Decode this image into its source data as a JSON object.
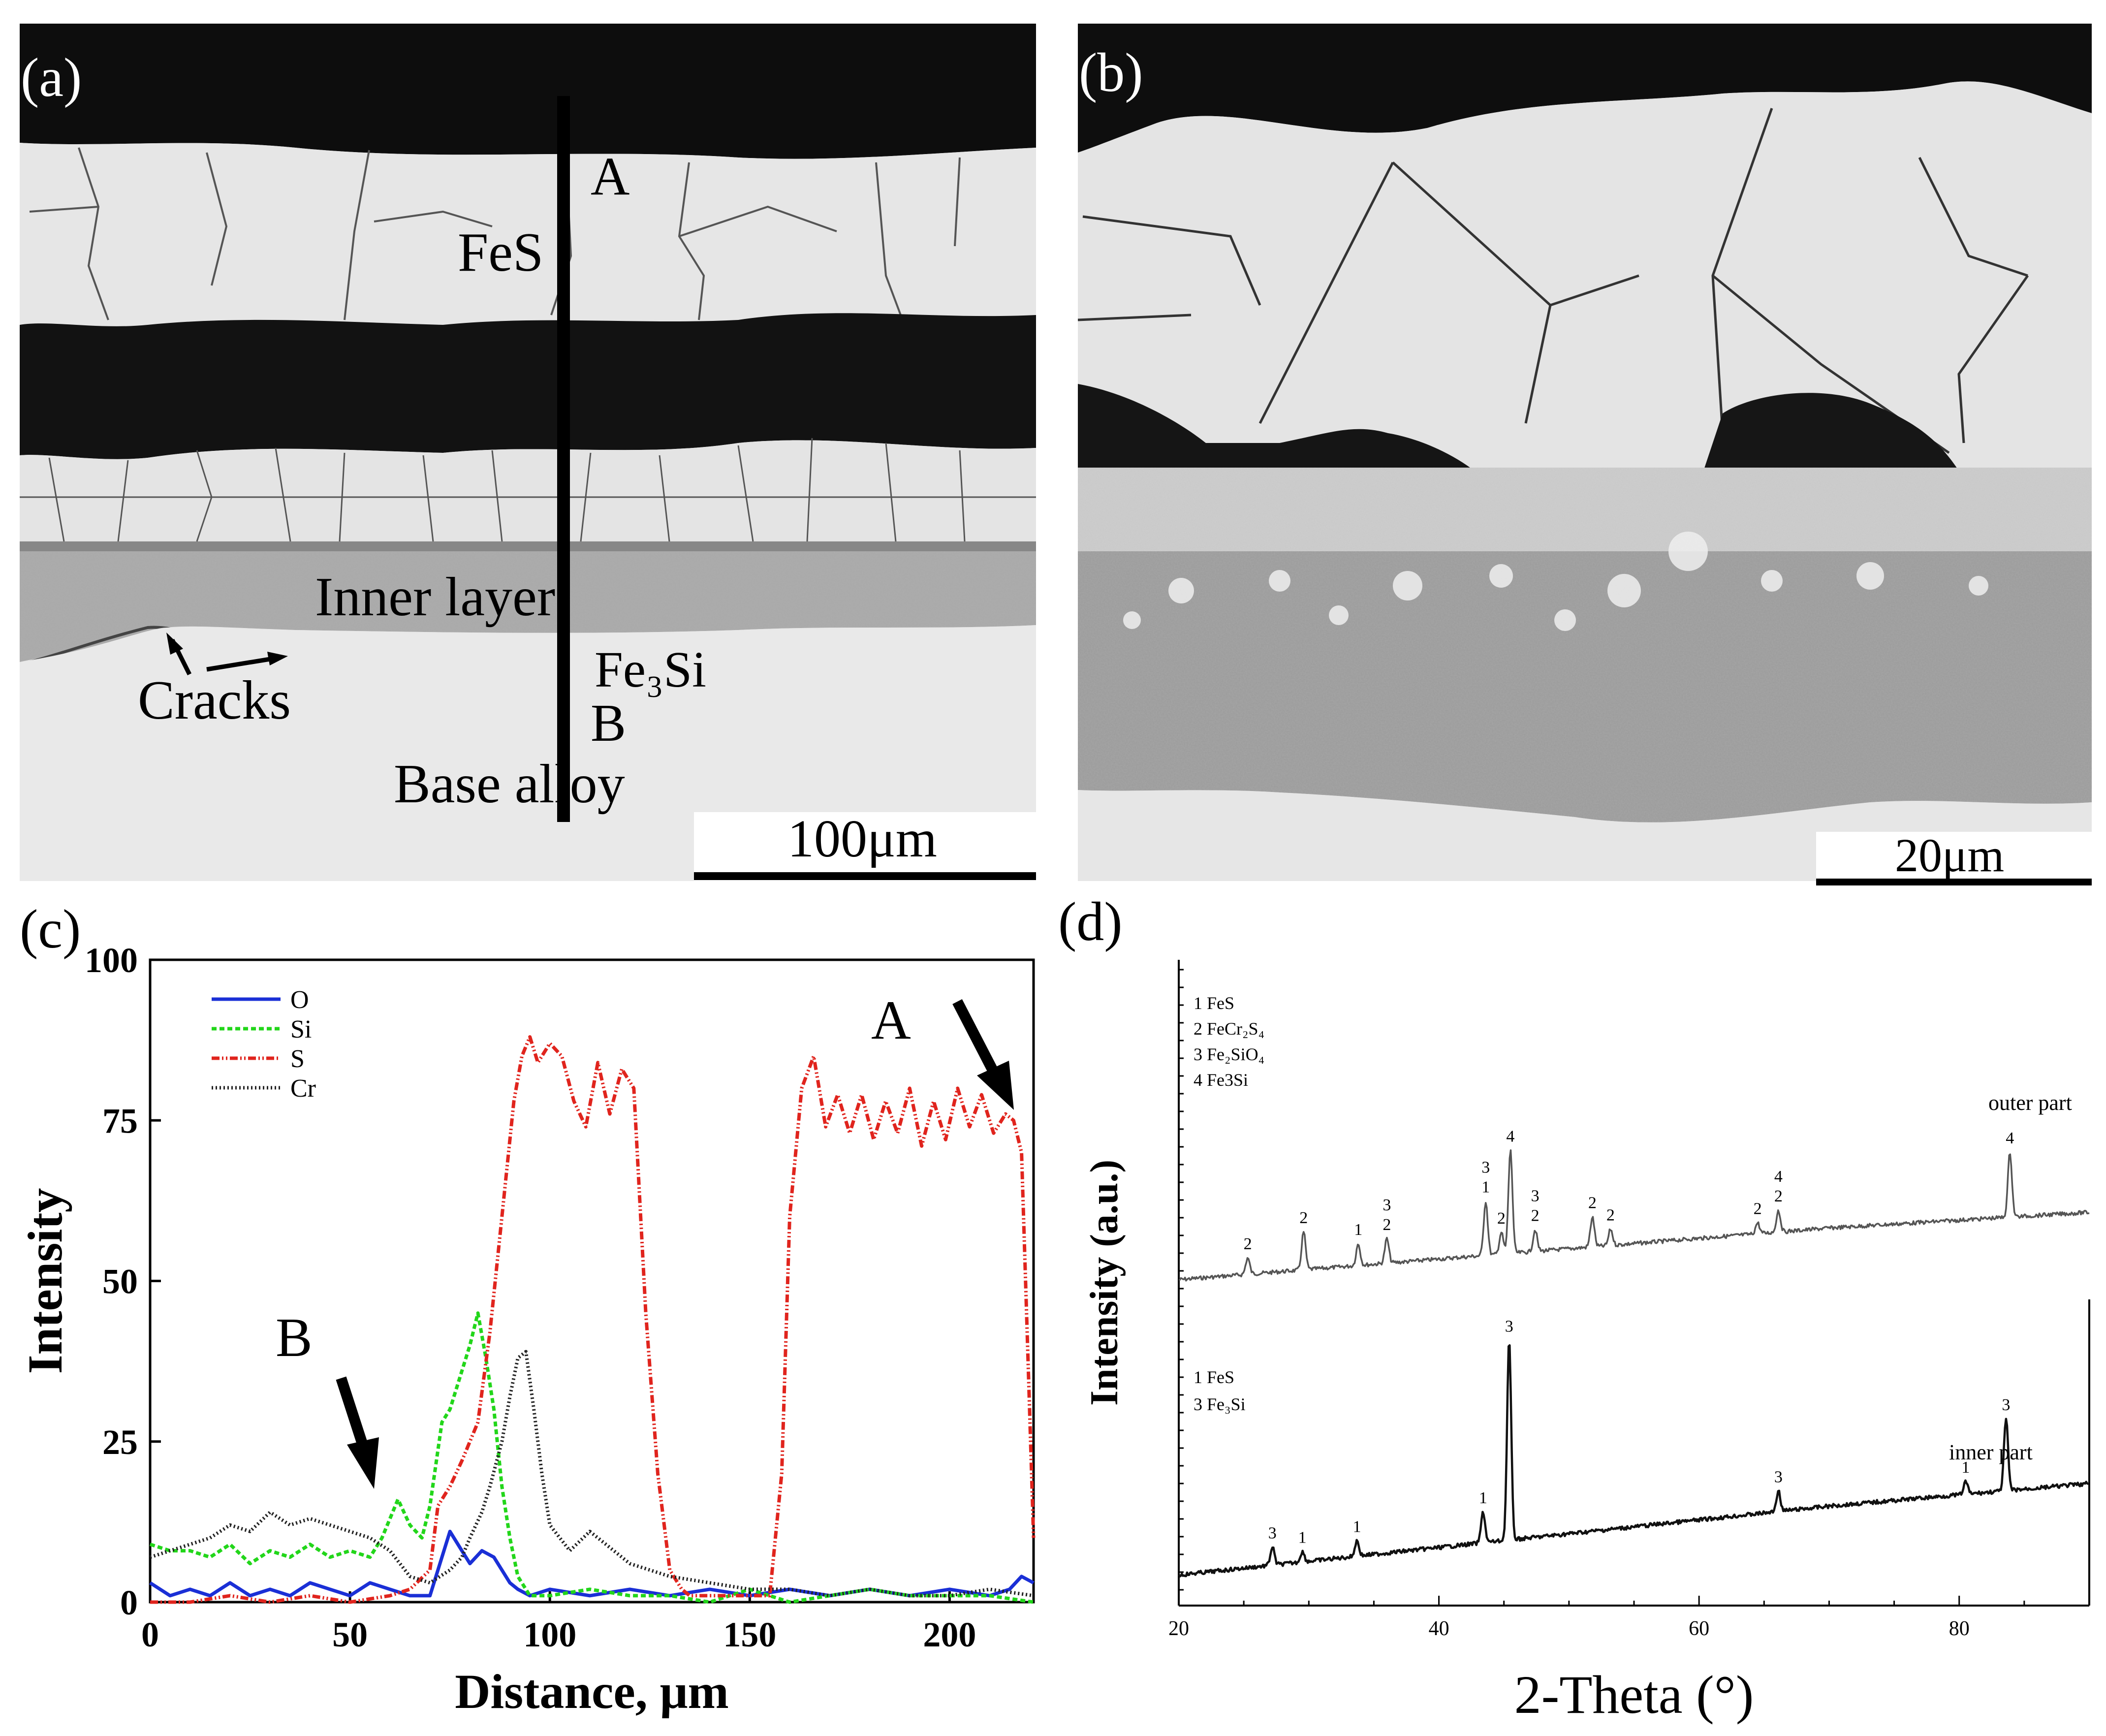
{
  "figure": {
    "panel_labels": [
      "(a)",
      "(b)",
      "(c)",
      "(d)"
    ]
  },
  "panel_a": {
    "labels": {
      "A": "A",
      "fes": "FeS",
      "inner_layer": "Inner layer",
      "fe3si": "Fe₃Si",
      "B": "B",
      "cracks": "Cracks",
      "base_alloy": "Base alloy"
    },
    "scale_bar": "100μm"
  },
  "panel_b": {
    "scale_bar": "20μm"
  },
  "chart_data": [
    {
      "id": "c",
      "type": "line",
      "xlabel": "Distance, μm",
      "ylabel": "Intensity",
      "xlim": [
        0,
        221
      ],
      "ylim": [
        0,
        100
      ],
      "xticks": [
        0,
        50,
        100,
        150,
        200
      ],
      "yticks": [
        0,
        25,
        50,
        75,
        100
      ],
      "legend_position": "top-left",
      "annotations": [
        "A",
        "B"
      ],
      "series": [
        {
          "name": "O",
          "color": "#1a2fd6",
          "dash": "solid",
          "x": [
            0,
            5,
            10,
            15,
            20,
            25,
            30,
            35,
            40,
            45,
            50,
            55,
            60,
            65,
            70,
            72,
            75,
            78,
            80,
            83,
            86,
            88,
            90,
            92,
            95,
            100,
            110,
            120,
            130,
            140,
            150,
            160,
            170,
            180,
            190,
            200,
            210,
            215,
            218,
            221
          ],
          "y": [
            3,
            1,
            2,
            1,
            3,
            1,
            2,
            1,
            3,
            2,
            1,
            3,
            2,
            1,
            1,
            5,
            11,
            8,
            6,
            8,
            7,
            5,
            3,
            2,
            1,
            2,
            1,
            2,
            1,
            2,
            1,
            2,
            1,
            2,
            1,
            2,
            1,
            2,
            4,
            3
          ]
        },
        {
          "name": "Si",
          "color": "#22d61a",
          "dash": "10 6",
          "x": [
            0,
            5,
            10,
            15,
            20,
            25,
            30,
            35,
            40,
            45,
            50,
            55,
            58,
            62,
            65,
            68,
            70,
            73,
            75,
            78,
            80,
            82,
            84,
            86,
            88,
            90,
            92,
            95,
            100,
            110,
            120,
            130,
            140,
            150,
            160,
            170,
            180,
            190,
            200,
            210,
            221
          ],
          "y": [
            9,
            8,
            8,
            7,
            9,
            6,
            8,
            7,
            9,
            7,
            8,
            7,
            10,
            16,
            12,
            10,
            15,
            28,
            30,
            36,
            40,
            45,
            38,
            30,
            18,
            10,
            4,
            1,
            1,
            2,
            1,
            1,
            0,
            2,
            0,
            1,
            2,
            1,
            1,
            1,
            0
          ]
        },
        {
          "name": "S",
          "color": "#e0241d",
          "dash": "16 5 3 5 3 5",
          "x": [
            0,
            10,
            20,
            30,
            40,
            50,
            60,
            65,
            70,
            72,
            75,
            78,
            82,
            85,
            88,
            91,
            93,
            95,
            97,
            100,
            103,
            106,
            109,
            112,
            115,
            118,
            121,
            124,
            127,
            130,
            133,
            135,
            140,
            150,
            155,
            158,
            160,
            163,
            166,
            169,
            172,
            175,
            178,
            181,
            184,
            187,
            190,
            193,
            196,
            199,
            202,
            205,
            208,
            211,
            214,
            216,
            218,
            220,
            221
          ],
          "y": [
            0,
            0,
            1,
            0,
            1,
            0,
            1,
            2,
            5,
            15,
            18,
            22,
            28,
            42,
            60,
            78,
            85,
            88,
            84,
            87,
            85,
            78,
            74,
            84,
            76,
            83,
            80,
            45,
            20,
            5,
            2,
            1,
            1,
            1,
            1,
            20,
            60,
            80,
            85,
            74,
            79,
            73,
            79,
            72,
            78,
            73,
            80,
            71,
            78,
            72,
            80,
            74,
            79,
            73,
            76,
            75,
            70,
            30,
            10
          ]
        },
        {
          "name": "Cr",
          "color": "#222222",
          "dash": "3 5",
          "x": [
            0,
            5,
            10,
            15,
            20,
            25,
            30,
            35,
            40,
            45,
            50,
            55,
            60,
            65,
            70,
            75,
            78,
            80,
            83,
            85,
            88,
            90,
            92,
            94,
            96,
            98,
            100,
            105,
            110,
            120,
            130,
            140,
            150,
            160,
            170,
            180,
            190,
            200,
            210,
            221
          ],
          "y": [
            7,
            8,
            9,
            10,
            12,
            11,
            14,
            12,
            13,
            12,
            11,
            10,
            8,
            4,
            3,
            5,
            7,
            10,
            14,
            18,
            25,
            32,
            38,
            39,
            30,
            20,
            12,
            8,
            11,
            6,
            4,
            3,
            2,
            2,
            1,
            2,
            1,
            1,
            2,
            1
          ]
        }
      ]
    },
    {
      "id": "d",
      "type": "line",
      "xlabel": "2-Theta (°)",
      "ylabel": "Intensity (a.u.)",
      "xlim": [
        20,
        90
      ],
      "xticks": [
        20,
        40,
        60,
        80
      ],
      "series": [
        {
          "name": "outer part",
          "legend": [
            "1 FeS",
            "2 FeCr₂S₄",
            "3 Fe₂SiO₄",
            "4 Fe3Si"
          ],
          "peaks": [
            {
              "two_theta": 25.3,
              "height": 6,
              "labels": [
                "2"
              ]
            },
            {
              "two_theta": 29.6,
              "height": 14,
              "labels": [
                "2"
              ]
            },
            {
              "two_theta": 33.8,
              "height": 8,
              "labels": [
                "1"
              ]
            },
            {
              "two_theta": 36.0,
              "height": 9,
              "labels": [
                "3",
                "2"
              ]
            },
            {
              "two_theta": 43.6,
              "height": 20,
              "labels": [
                "3",
                "1"
              ]
            },
            {
              "two_theta": 44.8,
              "height": 8,
              "labels": [
                "2"
              ]
            },
            {
              "two_theta": 45.5,
              "height": 38,
              "labels": [
                "4"
              ]
            },
            {
              "two_theta": 47.4,
              "height": 8,
              "labels": [
                "3",
                "2"
              ]
            },
            {
              "two_theta": 51.8,
              "height": 11,
              "labels": [
                "2"
              ]
            },
            {
              "two_theta": 53.2,
              "height": 6,
              "labels": [
                "2"
              ]
            },
            {
              "two_theta": 64.5,
              "height": 4,
              "labels": [
                "2"
              ]
            },
            {
              "two_theta": 66.1,
              "height": 8,
              "labels": [
                "4",
                "2"
              ]
            },
            {
              "two_theta": 83.9,
              "height": 24,
              "labels": [
                "4"
              ]
            }
          ]
        },
        {
          "name": "inner part",
          "legend": [
            "1 FeS",
            "3 Fe₃Si"
          ],
          "peaks": [
            {
              "two_theta": 27.2,
              "height": 7,
              "labels": [
                "3"
              ]
            },
            {
              "two_theta": 29.5,
              "height": 4,
              "labels": [
                "1"
              ]
            },
            {
              "two_theta": 33.7,
              "height": 6,
              "labels": [
                "1"
              ]
            },
            {
              "two_theta": 43.4,
              "height": 12,
              "labels": [
                "1"
              ]
            },
            {
              "two_theta": 45.4,
              "height": 78,
              "labels": [
                "3"
              ]
            },
            {
              "two_theta": 66.1,
              "height": 8,
              "labels": [
                "3"
              ]
            },
            {
              "two_theta": 80.5,
              "height": 5,
              "labels": [
                "1"
              ]
            },
            {
              "two_theta": 83.6,
              "height": 28,
              "labels": [
                "3"
              ]
            }
          ]
        }
      ]
    }
  ]
}
